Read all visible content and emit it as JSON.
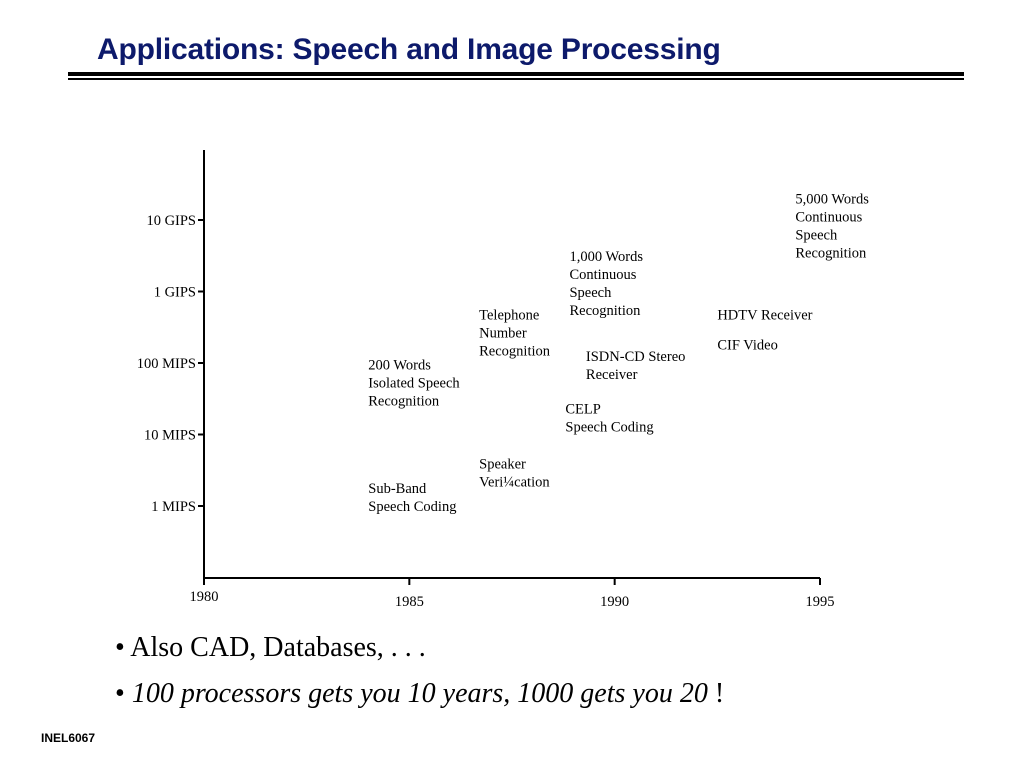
{
  "slide": {
    "title": "Applications: Speech and Image Processing",
    "footer": "INEL6067"
  },
  "bullets": [
    {
      "marker": "•",
      "text": "Also CAD, Databases, . . .",
      "style": "normal"
    },
    {
      "marker": "•",
      "text": "100 processors gets you 10 years, 1000 gets you 20",
      "style": "italic",
      "suffix": " !"
    }
  ],
  "chart_data": {
    "type": "scatter",
    "title": "",
    "xlabel": "",
    "ylabel": "",
    "x_scale": "linear",
    "y_scale": "log",
    "xlim": [
      1980,
      1995
    ],
    "x_ticks": [
      1980,
      1985,
      1990,
      1995
    ],
    "x_tick_labels": [
      "1980",
      "1985",
      "1990",
      "1995"
    ],
    "y_ticks": [
      1,
      10,
      100,
      1000,
      10000
    ],
    "y_tick_labels": [
      "1 MIPS",
      "10 MIPS",
      "100 MIPS",
      "1 GIPS",
      "10 GIPS"
    ],
    "grid": false,
    "annotations": [
      {
        "lines": [
          "Sub-Band",
          "Speech Coding"
        ],
        "x": 1984.0,
        "y": 1.0
      },
      {
        "lines": [
          "200 Words",
          "Isolated Speech",
          "Recognition"
        ],
        "x": 1984.0,
        "y": 30
      },
      {
        "lines": [
          "Speaker",
          "Veri¼cation"
        ],
        "x": 1986.7,
        "y": 2.2
      },
      {
        "lines": [
          "Telephone",
          "Number",
          "Recognition"
        ],
        "x": 1986.7,
        "y": 150
      },
      {
        "lines": [
          "CELP",
          "Speech Coding"
        ],
        "x": 1988.8,
        "y": 13
      },
      {
        "lines": [
          "ISDN-CD Stereo",
          "Receiver"
        ],
        "x": 1989.3,
        "y": 70
      },
      {
        "lines": [
          "1,000 Words",
          "Continuous",
          "Speech",
          "Recognition"
        ],
        "x": 1988.9,
        "y": 550
      },
      {
        "lines": [
          "HDTV Receiver"
        ],
        "x": 1992.5,
        "y": 480
      },
      {
        "lines": [
          "CIF Video"
        ],
        "x": 1992.5,
        "y": 180
      },
      {
        "lines": [
          "5,000 Words",
          "Continuous",
          "Speech",
          "Recognition"
        ],
        "x": 1994.4,
        "y": 3500
      }
    ]
  }
}
